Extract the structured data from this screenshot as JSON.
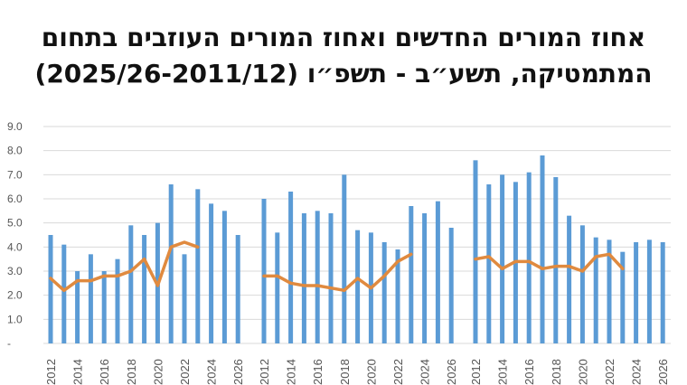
{
  "title": {
    "line1": "אחוז המורים החדשים ואחוז המורים העוזבים בתחום",
    "line2": "המתמטיקה, תשע״ב - תשפ״ו (2025/26-2011/12)"
  },
  "colors": {
    "bar": "#5b9bd5",
    "line": "#e08a3f",
    "grid": "#d9d9d9",
    "axis_text": "#555555"
  },
  "chart_data": {
    "type": "bar",
    "title": "אחוז המורים החדשים ואחוז המורים העוזבים בתחום המתמטיקה, תשע״ב - תשפ״ו (2025/26-2011/12)",
    "xlabel": "",
    "ylabel": "",
    "ylim": [
      0,
      9
    ],
    "y_ticks": [
      "-",
      "1.0",
      "2.0",
      "3.0",
      "4.0",
      "5.0",
      "6.0",
      "7.0",
      "8.0",
      "9.0"
    ],
    "grid": true,
    "legend": "none",
    "categories": [
      "2012",
      "2013",
      "2014",
      "2015",
      "2016",
      "2017",
      "2018",
      "2019",
      "2020",
      "2021",
      "2022",
      "2023",
      "2024",
      "2025",
      "2026"
    ],
    "x_tick_labels": [
      "2012",
      "2014",
      "2016",
      "2018",
      "2020",
      "2022",
      "2024",
      "2026"
    ],
    "groups": [
      {
        "bars": [
          4.5,
          4.1,
          3.0,
          3.7,
          3.0,
          3.5,
          4.9,
          4.5,
          5.0,
          6.6,
          3.7,
          6.4,
          5.8,
          5.5,
          4.5
        ],
        "line": [
          2.7,
          2.2,
          2.6,
          2.6,
          2.8,
          2.8,
          3.0,
          3.5,
          2.4,
          4.0,
          4.2,
          4.0,
          null,
          null,
          null
        ]
      },
      {
        "bars": [
          6.0,
          4.6,
          6.3,
          5.4,
          5.5,
          5.4,
          7.0,
          4.7,
          4.6,
          4.2,
          3.9,
          5.7,
          5.4,
          5.9,
          4.8
        ],
        "line": [
          2.8,
          2.8,
          2.5,
          2.4,
          2.4,
          2.3,
          2.2,
          2.7,
          2.3,
          2.8,
          3.4,
          3.7,
          null,
          null,
          null
        ]
      },
      {
        "bars": [
          7.6,
          6.6,
          7.0,
          6.7,
          7.1,
          7.8,
          6.9,
          5.3,
          4.9,
          4.4,
          4.3,
          3.8,
          4.2,
          4.3,
          4.2
        ],
        "line": [
          3.5,
          3.6,
          3.1,
          3.4,
          3.4,
          3.1,
          3.2,
          3.2,
          3.0,
          3.6,
          3.7,
          3.1,
          null,
          null,
          null
        ]
      }
    ]
  }
}
